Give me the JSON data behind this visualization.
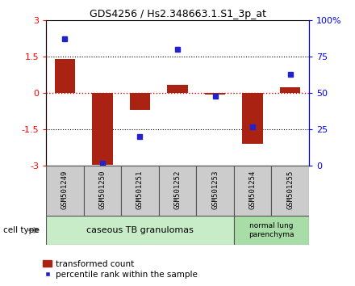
{
  "title": "GDS4256 / Hs2.348663.1.S1_3p_at",
  "samples": [
    "GSM501249",
    "GSM501250",
    "GSM501251",
    "GSM501252",
    "GSM501253",
    "GSM501254",
    "GSM501255"
  ],
  "transformed_counts": [
    1.4,
    -2.95,
    -0.7,
    0.35,
    -0.05,
    -2.1,
    0.25
  ],
  "percentile_ranks": [
    87,
    2,
    20,
    80,
    48,
    27,
    63
  ],
  "ylim_left": [
    -3,
    3
  ],
  "ylim_right": [
    0,
    100
  ],
  "yticks_left": [
    -3,
    -1.5,
    0,
    1.5,
    3
  ],
  "yticks_right": [
    0,
    25,
    50,
    75,
    100
  ],
  "ytick_labels_right": [
    "0",
    "25",
    "50",
    "75",
    "100%"
  ],
  "bar_color": "#aa2211",
  "dot_color": "#2222cc",
  "group1_label": "caseous TB granulomas",
  "group2_label": "normal lung\nparenchyma",
  "group1_indices": [
    0,
    1,
    2,
    3,
    4
  ],
  "group2_indices": [
    5,
    6
  ],
  "group1_color": "#c8ecc8",
  "group2_color": "#a8dda8",
  "sample_box_color": "#cccccc",
  "cell_type_label": "cell type",
  "legend_bar_label": "transformed count",
  "legend_dot_label": "percentile rank within the sample",
  "zero_line_color": "#cc0000",
  "dotted_line_color": "#000000",
  "title_fontsize": 9,
  "axis_label_fontsize": 8,
  "sample_fontsize": 6.5,
  "group_fontsize": 8,
  "legend_fontsize": 7.5
}
